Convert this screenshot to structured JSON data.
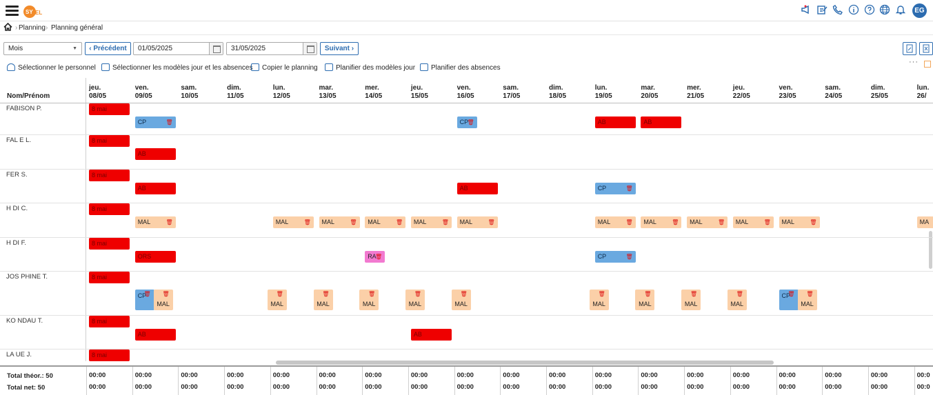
{
  "header": {
    "logo_text": "SYNEL",
    "avatar": "EG",
    "icons": [
      "megaphone-icon",
      "edit-notes-icon",
      "phone-icon",
      "info-icon",
      "help-icon",
      "globe-icon",
      "bell-icon"
    ]
  },
  "breadcrumb": [
    "Planning",
    "Planning général"
  ],
  "toolbar": {
    "period": "Mois",
    "prev_label": "Précédent",
    "next_label": "Suivant",
    "date_from": "01/05/2025",
    "date_to": "31/05/2025",
    "actions": [
      "Sélectionner le personnel",
      "Sélectionner les modèles jour et les absences",
      "Copier le planning",
      "Planifier des modèles jour",
      "Planifier des absences"
    ]
  },
  "grid": {
    "name_header": "Nom/Prénom",
    "days": [
      {
        "d": "jeu.",
        "date": "08/05"
      },
      {
        "d": "ven.",
        "date": "09/05"
      },
      {
        "d": "sam.",
        "date": "10/05"
      },
      {
        "d": "dim.",
        "date": "11/05"
      },
      {
        "d": "lun.",
        "date": "12/05"
      },
      {
        "d": "mar.",
        "date": "13/05"
      },
      {
        "d": "mer.",
        "date": "14/05"
      },
      {
        "d": "jeu.",
        "date": "15/05"
      },
      {
        "d": "ven.",
        "date": "16/05"
      },
      {
        "d": "sam.",
        "date": "17/05"
      },
      {
        "d": "dim.",
        "date": "18/05"
      },
      {
        "d": "lun.",
        "date": "19/05"
      },
      {
        "d": "mar.",
        "date": "20/05"
      },
      {
        "d": "mer.",
        "date": "21/05"
      },
      {
        "d": "jeu.",
        "date": "22/05"
      },
      {
        "d": "ven.",
        "date": "23/05"
      },
      {
        "d": "sam.",
        "date": "24/05"
      },
      {
        "d": "dim.",
        "date": "25/05"
      },
      {
        "d": "lun.",
        "date": "26/"
      }
    ],
    "employees": [
      {
        "name": "FABISON P.",
        "entries": [
          {
            "day": 0,
            "label": "8 mai",
            "type": "red",
            "lane": 0
          },
          {
            "day": 1,
            "label": "CP",
            "type": "blue",
            "lane": 1,
            "del": true
          },
          {
            "day": 8,
            "label": "CP",
            "type": "blue",
            "lane": 1,
            "del": true,
            "narrow": true
          },
          {
            "day": 11,
            "label": "AB",
            "type": "red",
            "lane": 1
          },
          {
            "day": 12,
            "label": "AB",
            "type": "red",
            "lane": 1
          }
        ]
      },
      {
        "name": "FAL  E L.",
        "entries": [
          {
            "day": 0,
            "label": "8 mai",
            "type": "red",
            "lane": 0
          },
          {
            "day": 1,
            "label": "AB",
            "type": "red",
            "lane": 1
          }
        ]
      },
      {
        "name": "FER  S.",
        "entries": [
          {
            "day": 0,
            "label": "8 mai",
            "type": "red",
            "lane": 0
          },
          {
            "day": 1,
            "label": "AB",
            "type": "red",
            "lane": 1
          },
          {
            "day": 8,
            "label": "AB",
            "type": "red",
            "lane": 1
          },
          {
            "day": 11,
            "label": "CP",
            "type": "blue",
            "lane": 1,
            "del": true
          }
        ]
      },
      {
        "name": "H  DI C.",
        "entries": [
          {
            "day": 0,
            "label": "8 mai",
            "type": "red",
            "lane": 0
          },
          {
            "day": 1,
            "label": "MAL",
            "type": "orange",
            "lane": 1,
            "del": true
          },
          {
            "day": 4,
            "label": "MAL",
            "type": "orange",
            "lane": 1,
            "del": true
          },
          {
            "day": 5,
            "label": "MAL",
            "type": "orange",
            "lane": 1,
            "del": true
          },
          {
            "day": 6,
            "label": "MAL",
            "type": "orange",
            "lane": 1,
            "del": true
          },
          {
            "day": 7,
            "label": "MAL",
            "type": "orange",
            "lane": 1,
            "del": true
          },
          {
            "day": 8,
            "label": "MAL",
            "type": "orange",
            "lane": 1,
            "del": true
          },
          {
            "day": 11,
            "label": "MAL",
            "type": "orange",
            "lane": 1,
            "del": true
          },
          {
            "day": 12,
            "label": "MAL",
            "type": "orange",
            "lane": 1,
            "del": true
          },
          {
            "day": 13,
            "label": "MAL",
            "type": "orange",
            "lane": 1,
            "del": true
          },
          {
            "day": 14,
            "label": "MAL",
            "type": "orange",
            "lane": 1,
            "del": true
          },
          {
            "day": 15,
            "label": "MAL",
            "type": "orange",
            "lane": 1,
            "del": true
          },
          {
            "day": 18,
            "label": "MA",
            "type": "orange",
            "lane": 1
          }
        ]
      },
      {
        "name": "H  DI F.",
        "entries": [
          {
            "day": 0,
            "label": "8 mai",
            "type": "red",
            "lane": 0
          },
          {
            "day": 1,
            "label": "ORS",
            "type": "red",
            "lane": 1
          },
          {
            "day": 6,
            "label": "RA",
            "type": "pink",
            "lane": 1,
            "del": true,
            "narrow": true
          },
          {
            "day": 11,
            "label": "CP",
            "type": "blue",
            "lane": 1,
            "del": true
          }
        ]
      },
      {
        "name": "JOS  PHINE T.",
        "entries": [
          {
            "day": 0,
            "label": "8 mai",
            "type": "red",
            "lane": 0
          },
          {
            "day": 1,
            "label": "CP",
            "type": "blue",
            "lane": 1,
            "del": true,
            "tall": true,
            "slot": 0
          },
          {
            "day": 1,
            "label": "MAL",
            "type": "orange",
            "lane": 1,
            "del": true,
            "tall": true,
            "slot": 1
          },
          {
            "day": 4,
            "label": "MAL",
            "type": "orange",
            "lane": 1,
            "del": true,
            "tall": true,
            "slot": 1
          },
          {
            "day": 5,
            "label": "MAL",
            "type": "orange",
            "lane": 1,
            "del": true,
            "tall": true,
            "slot": 1
          },
          {
            "day": 6,
            "label": "MAL",
            "type": "orange",
            "lane": 1,
            "del": true,
            "tall": true,
            "slot": 1
          },
          {
            "day": 7,
            "label": "MAL",
            "type": "orange",
            "lane": 1,
            "del": true,
            "tall": true,
            "slot": 1
          },
          {
            "day": 8,
            "label": "MAL",
            "type": "orange",
            "lane": 1,
            "del": true,
            "tall": true,
            "slot": 1
          },
          {
            "day": 11,
            "label": "MAL",
            "type": "orange",
            "lane": 1,
            "del": true,
            "tall": true,
            "slot": 1
          },
          {
            "day": 12,
            "label": "MAL",
            "type": "orange",
            "lane": 1,
            "del": true,
            "tall": true,
            "slot": 1
          },
          {
            "day": 13,
            "label": "MAL",
            "type": "orange",
            "lane": 1,
            "del": true,
            "tall": true,
            "slot": 1
          },
          {
            "day": 14,
            "label": "MAL",
            "type": "orange",
            "lane": 1,
            "del": true,
            "tall": true,
            "slot": 1
          },
          {
            "day": 15,
            "label": "CP",
            "type": "blue",
            "lane": 1,
            "del": true,
            "tall": true,
            "slot": 0
          },
          {
            "day": 15,
            "label": "MAL",
            "type": "orange",
            "lane": 1,
            "del": true,
            "tall": true,
            "slot": 1
          }
        ]
      },
      {
        "name": "KO  NDAU T.",
        "entries": [
          {
            "day": 0,
            "label": "8 mai",
            "type": "red",
            "lane": 0
          },
          {
            "day": 1,
            "label": "AB",
            "type": "red",
            "lane": 1
          },
          {
            "day": 7,
            "label": "AB",
            "type": "red",
            "lane": 1
          }
        ]
      },
      {
        "name": "LA  UE J.",
        "entries": [
          {
            "day": 0,
            "label": "8 mai",
            "type": "red",
            "lane": 0
          }
        ]
      }
    ]
  },
  "footer": {
    "total_theor_label": "Total théor.: 50",
    "total_net_label": "Total net: 50",
    "values": [
      "00:00",
      "00:00",
      "00:00",
      "00:00",
      "00:00",
      "00:00",
      "00:00",
      "00:00",
      "00:00",
      "00:00",
      "00:00",
      "00:00",
      "00:00",
      "00:00",
      "00:00",
      "00:00",
      "00:00",
      "00:00",
      "00:0"
    ]
  },
  "colors": {
    "accent": "#2c6cb0",
    "absence_red": "#ef0000",
    "cp_blue": "#6aa9e0",
    "mal_orange": "#fbd0a8",
    "ra_pink": "#f27ad0"
  }
}
